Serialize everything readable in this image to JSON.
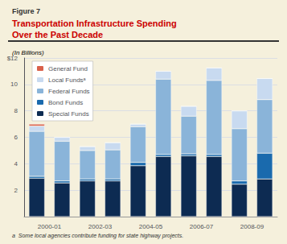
{
  "chart_data": {
    "type": "bar",
    "title": "Transportation Infrastructure Spending\nOver the Past Decade",
    "subtitle": "(In Billions)",
    "annotations": [
      "Figure 7",
      "a  Some local agencies contribute funding for state highway projects."
    ],
    "categories": [
      "2000-01",
      null,
      "2002-03",
      null,
      "2004-05",
      null,
      "2006-07",
      null,
      "2008-09",
      null
    ],
    "series": [
      {
        "name": "Special Funds",
        "color": "#0d2b52",
        "values": [
          2.9,
          2.55,
          2.7,
          2.7,
          3.85,
          4.55,
          4.6,
          4.55,
          2.45,
          2.85
        ]
      },
      {
        "name": "Bond Funds",
        "color": "#1a6aad",
        "values": [
          0.15,
          0.15,
          0.15,
          0.15,
          0.25,
          0.15,
          0.15,
          0.15,
          0.25,
          1.95
        ]
      },
      {
        "name": "Federal Funds",
        "color": "#8ab4d9",
        "values": [
          3.4,
          3.0,
          2.15,
          2.2,
          2.7,
          5.7,
          2.85,
          5.6,
          3.95,
          4.05
        ]
      },
      {
        "name": "Local Fundsᵃ",
        "color": "#c8daf0",
        "values": [
          0.4,
          0.3,
          0.3,
          0.55,
          0.2,
          0.6,
          0.75,
          0.95,
          1.35,
          1.6
        ]
      },
      {
        "name": "General Fund",
        "color": "#d9604a",
        "values": [
          0.15,
          0.0,
          0.0,
          0.0,
          0.0,
          0.0,
          0.0,
          0.0,
          0.0,
          0.0
        ]
      }
    ],
    "stacked": true,
    "ylim": [
      0,
      12
    ],
    "yticks": [
      {
        "value": 0,
        "label": ""
      },
      2,
      4,
      6,
      8,
      10,
      {
        "value": 12,
        "label": "$12"
      }
    ],
    "grid": true,
    "legend": "upper left"
  }
}
